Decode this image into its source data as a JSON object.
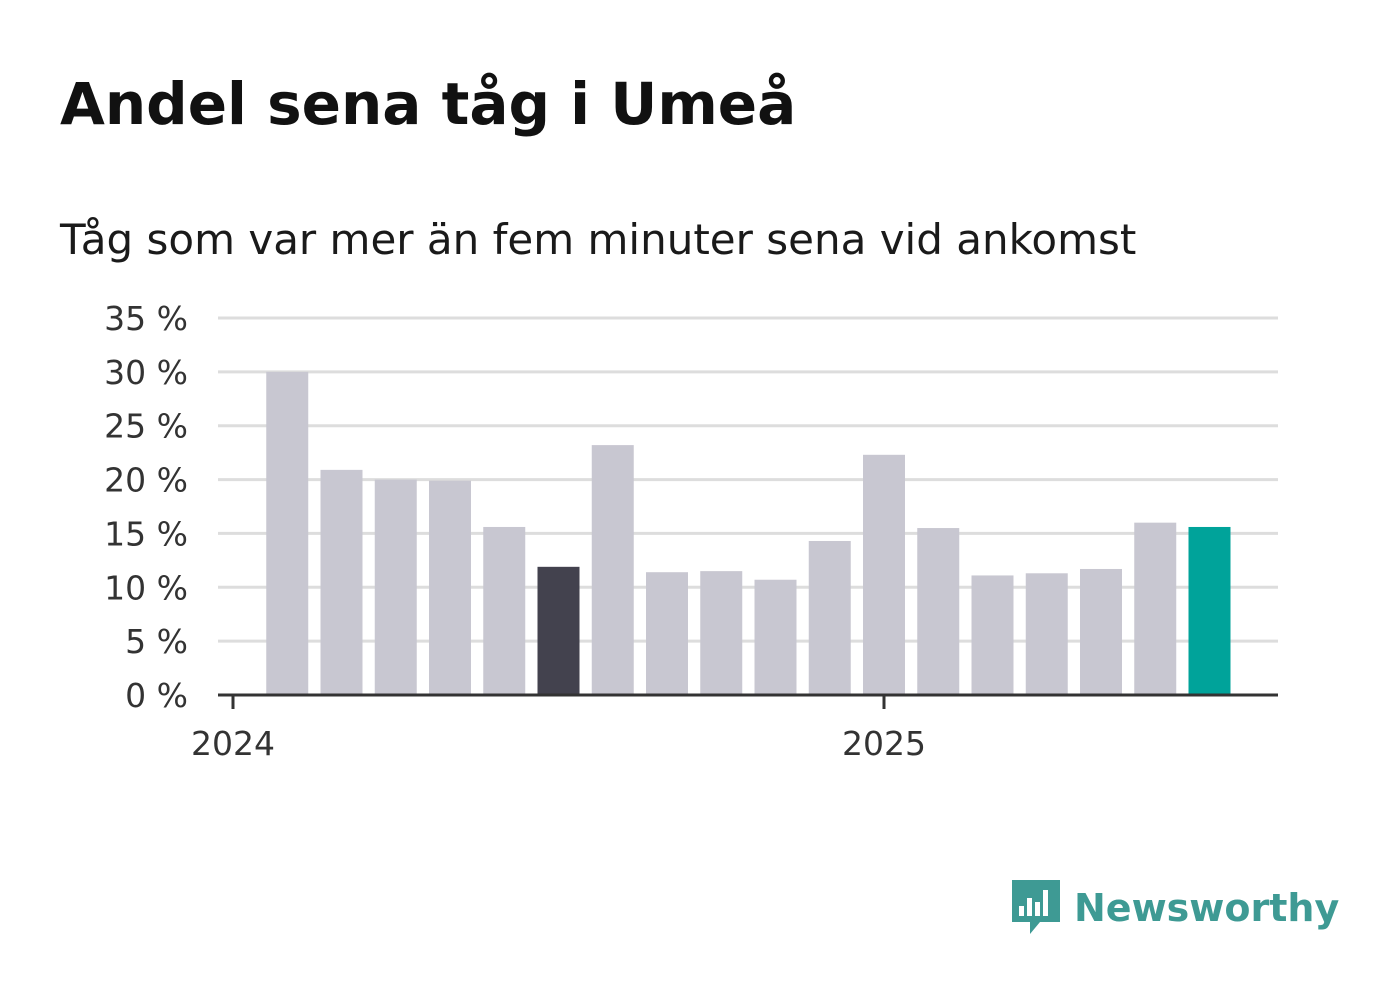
{
  "title": "Andel sena tåg i Umeå",
  "subtitle": "Tåg som var mer än fem minuter sena vid ankomst",
  "brand": {
    "name": "Newsworthy",
    "icon": "newsworthy-chart-logo-icon",
    "color": "#3e9a94"
  },
  "colors": {
    "bar_default": "#c8c7d1",
    "bar_highlight_dark": "#43424e",
    "bar_latest": "#00a39a",
    "gridline": "#dddddd",
    "axis": "#333333"
  },
  "chart_data": {
    "type": "bar",
    "title": "Andel sena tåg i Umeå",
    "subtitle": "Tåg som var mer än fem minuter sena vid ankomst",
    "xlabel": "",
    "ylabel": "",
    "ylim": [
      0,
      35
    ],
    "y_ticks": [
      0,
      5,
      10,
      15,
      20,
      25,
      30,
      35
    ],
    "y_tick_labels": [
      "0 %",
      "5 %",
      "10 %",
      "15 %",
      "20 %",
      "25 %",
      "30 %",
      "35 %"
    ],
    "x_tick_labels": [
      {
        "label": "2024",
        "month_index": 0
      },
      {
        "label": "2025",
        "month_index": 12
      }
    ],
    "grid": true,
    "legend": "none",
    "series": [
      {
        "values": [
          30.0,
          20.9,
          20.0,
          19.9,
          15.6,
          11.9,
          23.2,
          11.4,
          11.5,
          10.7,
          14.3,
          22.3,
          15.5,
          11.1,
          11.3,
          11.7,
          16.0,
          15.6
        ]
      }
    ],
    "categories_month_index": [
      1,
      2,
      3,
      4,
      5,
      6,
      7,
      8,
      9,
      10,
      11,
      12,
      13,
      14,
      15,
      16,
      17,
      18
    ],
    "highlight": [
      {
        "index": 5,
        "color": "#43424e"
      },
      {
        "index": 17,
        "color": "#00a39a"
      }
    ]
  }
}
